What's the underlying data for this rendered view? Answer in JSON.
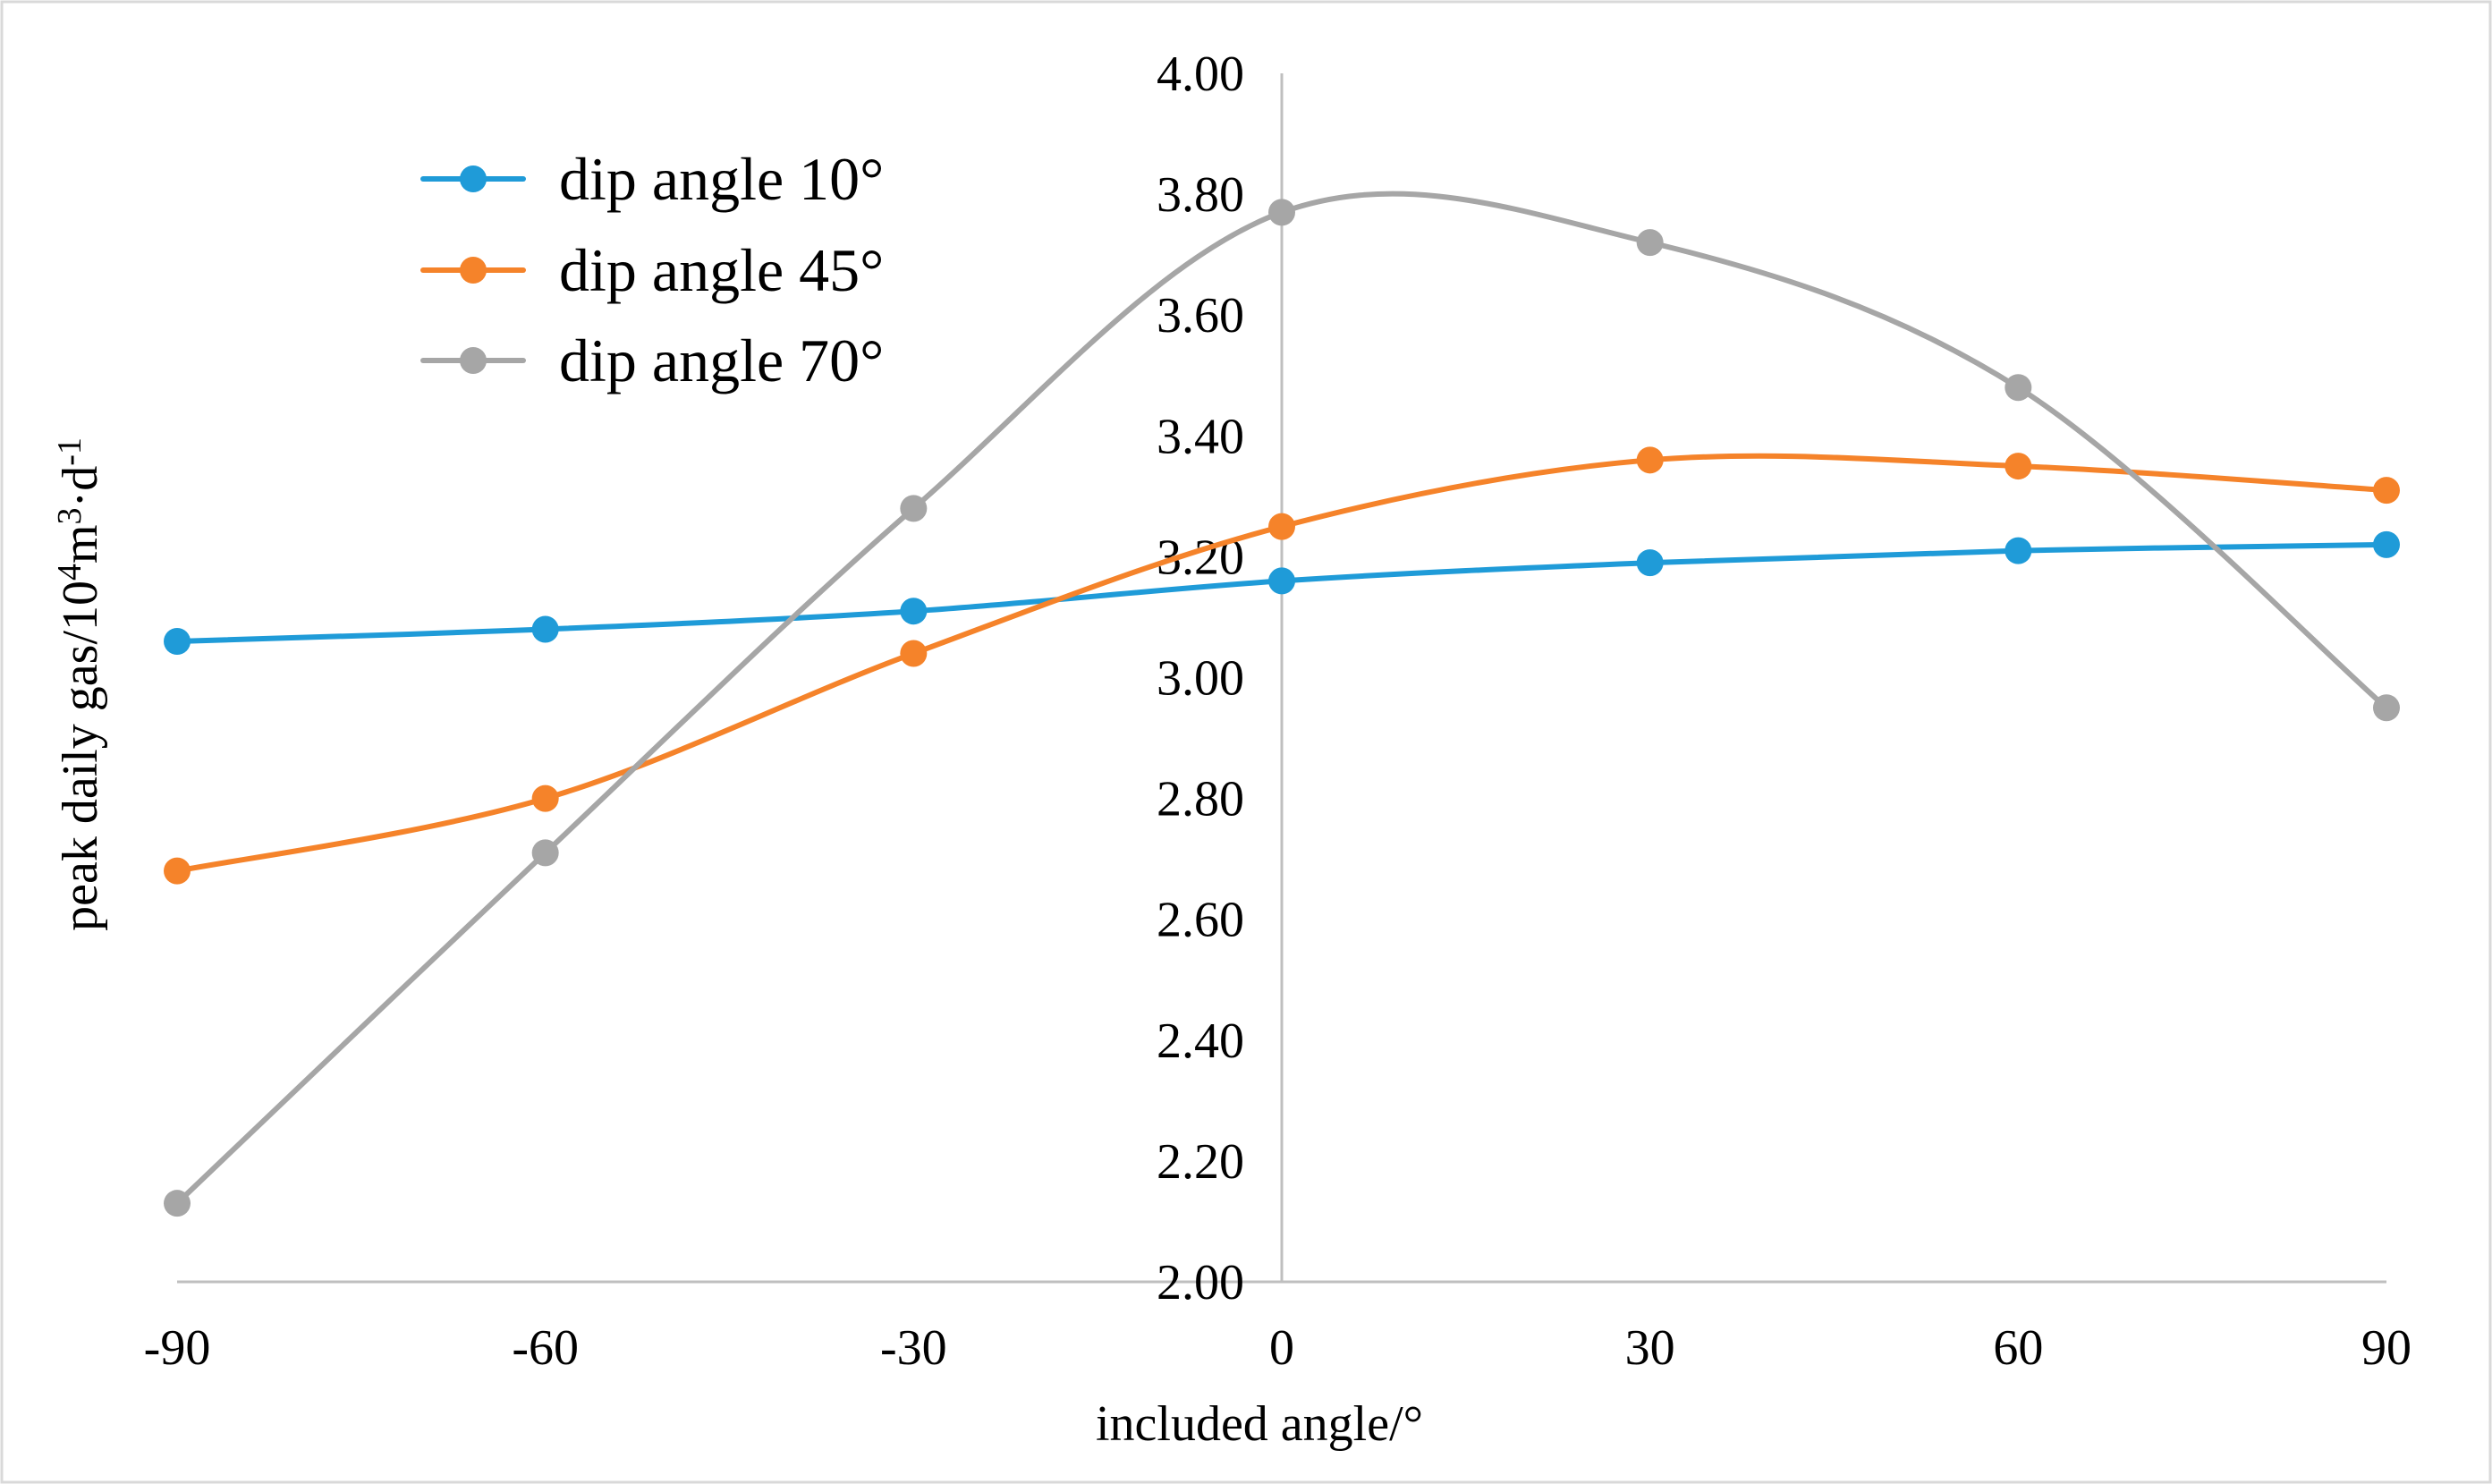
{
  "chart_data": {
    "type": "line",
    "title": "",
    "xlabel": "included angle/°",
    "ylabel_parts": {
      "base": "peak daily gas/10",
      "sup1": "4",
      "mid": "m",
      "sup2": "3",
      "dot": "·d",
      "sup3": "-1"
    },
    "x": [
      -90,
      -60,
      -30,
      0,
      30,
      60,
      90
    ],
    "x_tick_labels": [
      "-90",
      "-60",
      "-30",
      "0",
      "30",
      "60",
      "90"
    ],
    "ylim": [
      2.0,
      4.0
    ],
    "y_tick_values": [
      2.0,
      2.2,
      2.4,
      2.6,
      2.8,
      3.0,
      3.2,
      3.4,
      3.6,
      3.8,
      4.0
    ],
    "y_tick_labels": [
      "2.00",
      "2.20",
      "2.40",
      "2.60",
      "2.80",
      "3.00",
      "3.20",
      "3.40",
      "3.60",
      "3.80",
      "4.00"
    ],
    "grid": false,
    "smooth": true,
    "legend_position": "top-left",
    "series": [
      {
        "name": "dip angle 10°",
        "color": "#1f9bd8",
        "values": [
          3.06,
          3.08,
          3.11,
          3.16,
          3.19,
          3.21,
          3.22
        ]
      },
      {
        "name": "dip angle 45°",
        "color": "#f5832a",
        "values": [
          2.68,
          2.8,
          3.04,
          3.25,
          3.36,
          3.35,
          3.31
        ]
      },
      {
        "name": "dip angle 70°",
        "color": "#a6a6a6",
        "values": [
          2.13,
          2.71,
          3.28,
          3.77,
          3.72,
          3.48,
          2.95
        ]
      }
    ],
    "axis_color": "#bfbfbf"
  }
}
